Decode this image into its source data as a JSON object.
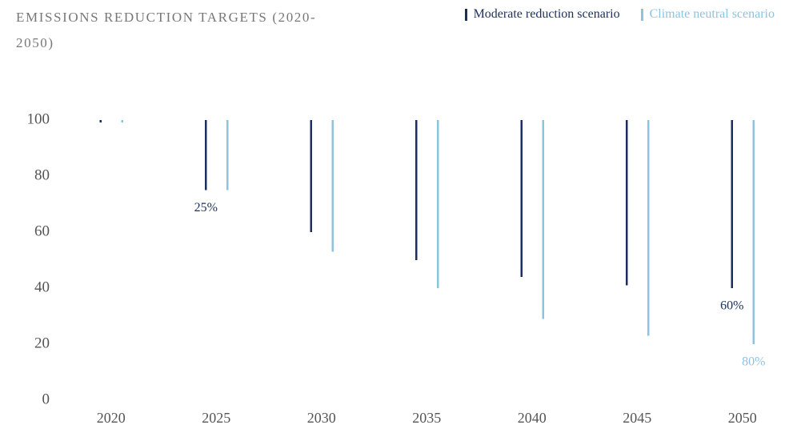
{
  "chart_data": {
    "type": "range_bar",
    "title": "EMISSIONS REDUCTION TARGETS (2020-2050)",
    "categories": [
      "2020",
      "2025",
      "2030",
      "2035",
      "2040",
      "2045",
      "2050"
    ],
    "series": [
      {
        "name": "Moderate reduction scenario",
        "color": "#1b2f5e",
        "values": [
          100,
          75,
          60,
          50,
          44,
          41,
          40
        ]
      },
      {
        "name": "Climate neutral scenario",
        "color": "#8ec3e0",
        "values": [
          100,
          75,
          53,
          40,
          29,
          23,
          20
        ]
      }
    ],
    "annotations": [
      {
        "text": "25%",
        "series": "Moderate reduction scenario",
        "category": "2025"
      },
      {
        "text": "60%",
        "series": "Moderate reduction scenario",
        "category": "2050"
      },
      {
        "text": "80%",
        "series": "Climate neutral scenario",
        "category": "2050"
      }
    ],
    "ylim": [
      0,
      100
    ],
    "yticks": [
      0,
      20,
      40,
      60,
      80,
      100
    ],
    "grid": false,
    "legend": "top-right"
  }
}
